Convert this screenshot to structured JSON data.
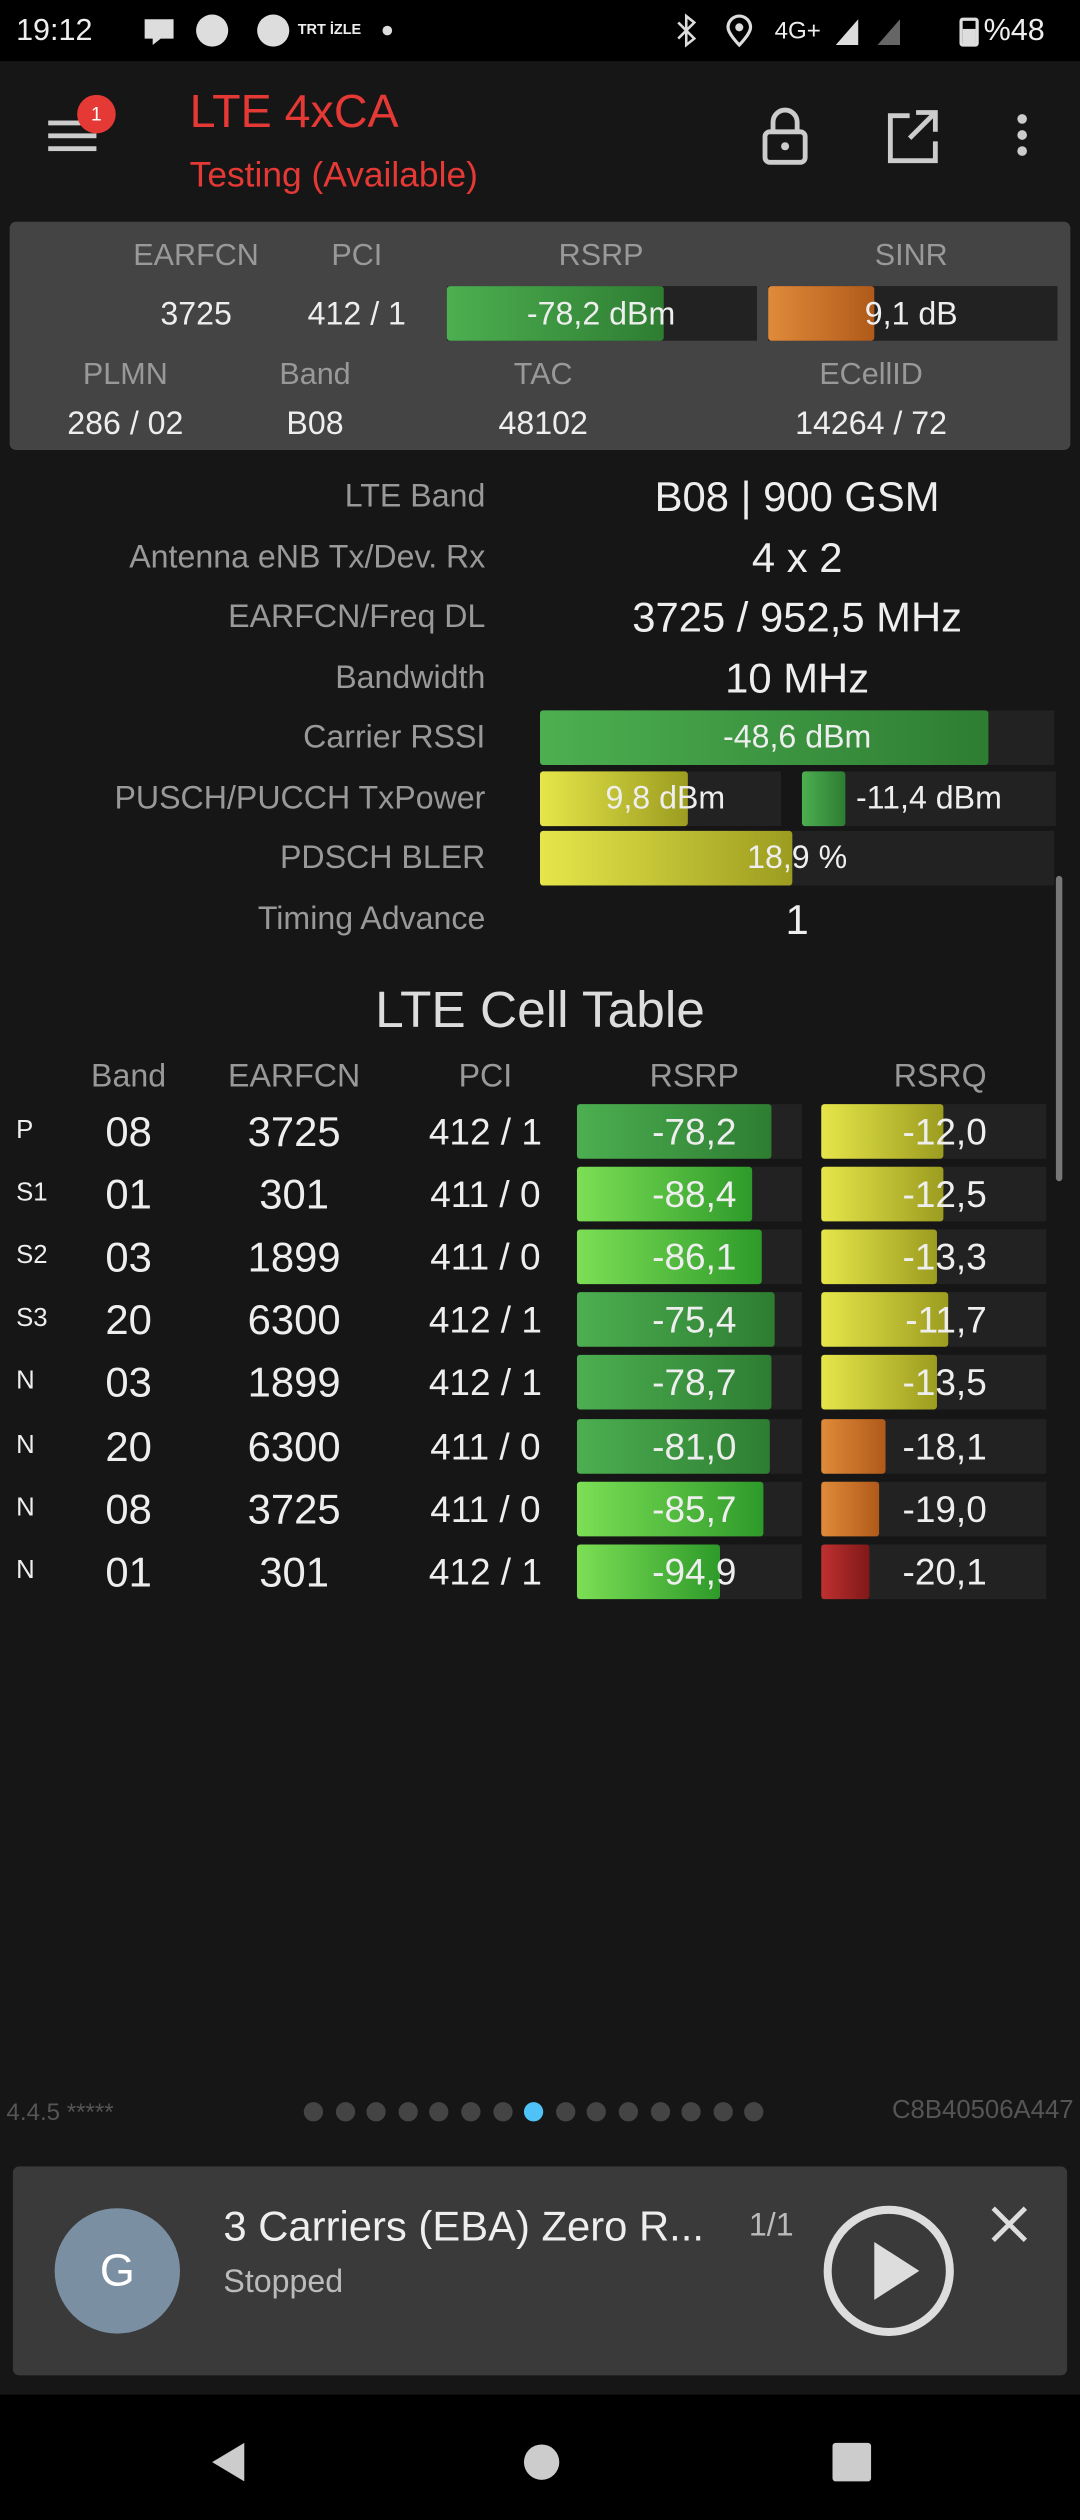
{
  "status": {
    "time": "19:12",
    "app": "TRT İZLE",
    "network": "4G+",
    "battery": "%48"
  },
  "header": {
    "title": "LTE 4xCA",
    "subtitle": "Testing (Available)",
    "badge": "1"
  },
  "summary": {
    "headers1": [
      "EARFCN",
      "PCI",
      "RSRP",
      "SINR"
    ],
    "values1": [
      "3725",
      "412 / 1",
      "-78,2 dBm",
      "9,1 dB"
    ],
    "headers2": [
      "PLMN",
      "Band",
      "TAC",
      "ECellID"
    ],
    "values2": [
      "286 / 02",
      "B08",
      "48102",
      "14264 / 72"
    ]
  },
  "details": [
    {
      "label": "LTE Band",
      "value": "B08 | 900 GSM"
    },
    {
      "label": "Antenna eNB Tx/Dev. Rx",
      "value": "4 x 2"
    },
    {
      "label": "EARFCN/Freq DL",
      "value": "3725 / 952,5 MHz"
    },
    {
      "label": "Bandwidth",
      "value": "10 MHz"
    },
    {
      "label": "Carrier RSSI",
      "value": "-48,6 dBm"
    },
    {
      "label": "PUSCH/PUCCH TxPower",
      "value": "9,8 dBm",
      "value2": "-11,4 dBm"
    },
    {
      "label": "PDSCH BLER",
      "value": "18,9 %"
    },
    {
      "label": "Timing Advance",
      "value": "1"
    }
  ],
  "cell_table": {
    "title": "LTE Cell Table",
    "columns": [
      "Band",
      "EARFCN",
      "PCI",
      "RSRP",
      "RSRQ"
    ],
    "rows": [
      [
        "P",
        "08",
        "3725",
        "412 / 1",
        "-78,2",
        "-12,0"
      ],
      [
        "S1",
        "01",
        "301",
        "411 / 0",
        "-88,4",
        "-12,5"
      ],
      [
        "S2",
        "03",
        "1899",
        "411 / 0",
        "-86,1",
        "-13,3"
      ],
      [
        "S3",
        "20",
        "6300",
        "412 / 1",
        "-75,4",
        "-11,7"
      ],
      [
        "N",
        "03",
        "1899",
        "412 / 1",
        "-78,7",
        "-13,5"
      ],
      [
        "N",
        "20",
        "6300",
        "411 / 0",
        "-81,0",
        "-18,1"
      ],
      [
        "N",
        "08",
        "3725",
        "411 / 0",
        "-85,7",
        "-19,0"
      ],
      [
        "N",
        "01",
        "301",
        "412 / 1",
        "-94,9",
        "-20,1"
      ]
    ]
  },
  "footer": {
    "version": "4.4.5 *****",
    "device_id": "C8B40506A447"
  },
  "player": {
    "avatar": "G",
    "title": "3 Carriers (EBA) Zero R...",
    "count": "1/1",
    "status": "Stopped"
  }
}
